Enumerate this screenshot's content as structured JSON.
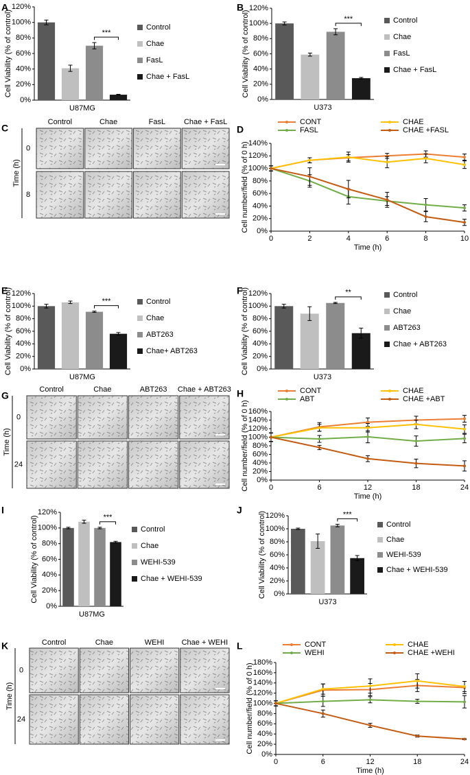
{
  "chart_data": [
    {
      "letter": "A",
      "type": "bar",
      "xlabel": "U87MG",
      "ylabel": "Cell Viability (% of control)",
      "annotation": "***",
      "ylim": [
        0,
        120
      ],
      "yticks": [
        {
          "value": 0,
          "label": "0%"
        },
        {
          "value": 20,
          "label": "20%"
        },
        {
          "value": 40,
          "label": "40%"
        },
        {
          "value": 60,
          "label": "60%"
        },
        {
          "value": 80,
          "label": "80%"
        },
        {
          "value": 100,
          "label": "100%"
        },
        {
          "value": 120,
          "label": "120%"
        }
      ],
      "series": [
        {
          "name": "Control",
          "color": "#595959",
          "values": [
            100
          ],
          "errors": [
            3
          ]
        },
        {
          "name": "Chae",
          "color": "#bfbfbf",
          "values": [
            41
          ],
          "errors": [
            4
          ]
        },
        {
          "name": "FasL",
          "color": "#8c8c8c",
          "values": [
            70
          ],
          "errors": [
            4
          ]
        },
        {
          "name": "Chae + FasL",
          "color": "#1a1a1a",
          "values": [
            7
          ],
          "errors": [
            0.5
          ]
        }
      ]
    },
    {
      "letter": "B",
      "type": "bar",
      "xlabel": "U373",
      "ylabel": "Cell Viability (% of control)",
      "annotation": "***",
      "ylim": [
        0,
        120
      ],
      "yticks": [
        {
          "value": 0,
          "label": "0%"
        },
        {
          "value": 20,
          "label": "20%"
        },
        {
          "value": 40,
          "label": "40%"
        },
        {
          "value": 60,
          "label": "60%"
        },
        {
          "value": 80,
          "label": "80%"
        },
        {
          "value": 100,
          "label": "100%"
        },
        {
          "value": 120,
          "label": "120%"
        }
      ],
      "series": [
        {
          "name": "Control",
          "color": "#595959",
          "values": [
            100
          ],
          "errors": [
            2
          ]
        },
        {
          "name": "Chae",
          "color": "#bfbfbf",
          "values": [
            59
          ],
          "errors": [
            2
          ]
        },
        {
          "name": "FasL",
          "color": "#8c8c8c",
          "values": [
            89
          ],
          "errors": [
            4
          ]
        },
        {
          "name": "Chae + FasL",
          "color": "#1a1a1a",
          "values": [
            28
          ],
          "errors": [
            1
          ]
        }
      ]
    },
    {
      "letter": "D",
      "type": "line",
      "xlabel": "Time (h)",
      "ylabel": "Cell number/field (% of 0 h)",
      "x": [
        0,
        2,
        4,
        6,
        8,
        10
      ],
      "xlim": [
        0,
        10
      ],
      "xticks": [
        0,
        2,
        4,
        6,
        8,
        10
      ],
      "ylim": [
        0,
        140
      ],
      "yticks": [
        {
          "value": 0,
          "label": "0%"
        },
        {
          "value": 20,
          "label": "20%"
        },
        {
          "value": 40,
          "label": "40%"
        },
        {
          "value": 60,
          "label": "60%"
        },
        {
          "value": 80,
          "label": "80%"
        },
        {
          "value": 100,
          "label": "100%"
        },
        {
          "value": 120,
          "label": "120%"
        },
        {
          "value": 140,
          "label": "140%"
        }
      ],
      "series": [
        {
          "name": "CONT",
          "color": "#ed7d31",
          "values": [
            100,
            113,
            117,
            120,
            123,
            118
          ],
          "errors": [
            4,
            4,
            5,
            4,
            5,
            5
          ]
        },
        {
          "name": "CHAE",
          "color": "#ffc000",
          "values": [
            100,
            113,
            118,
            110,
            116,
            106
          ],
          "errors": [
            4,
            4,
            8,
            9,
            7,
            6
          ]
        },
        {
          "name": "FASL",
          "color": "#70ad47",
          "values": [
            100,
            80,
            55,
            48,
            42,
            37
          ],
          "errors": [
            4,
            10,
            12,
            7,
            10,
            5
          ]
        },
        {
          "name": "CHAE +FASL",
          "color": "#c55a11",
          "values": [
            100,
            87,
            67,
            50,
            23,
            14
          ],
          "errors": [
            4,
            14,
            14,
            12,
            8,
            5
          ]
        }
      ]
    },
    {
      "letter": "E",
      "type": "bar",
      "xlabel": "U87MG",
      "ylabel": "Cell Viability (% of control)",
      "annotation": "***",
      "ylim": [
        0,
        120
      ],
      "yticks": [
        {
          "value": 0,
          "label": "0%"
        },
        {
          "value": 20,
          "label": "20%"
        },
        {
          "value": 40,
          "label": "40%"
        },
        {
          "value": 60,
          "label": "60%"
        },
        {
          "value": 80,
          "label": "80%"
        },
        {
          "value": 100,
          "label": "100%"
        },
        {
          "value": 120,
          "label": "120%"
        }
      ],
      "series": [
        {
          "name": "Control",
          "color": "#595959",
          "values": [
            100
          ],
          "errors": [
            3
          ]
        },
        {
          "name": "Chae",
          "color": "#bfbfbf",
          "values": [
            106
          ],
          "errors": [
            2
          ]
        },
        {
          "name": "ABT263",
          "color": "#8c8c8c",
          "values": [
            91
          ],
          "errors": [
            1
          ]
        },
        {
          "name": "Chae+ ABT263",
          "color": "#1a1a1a",
          "values": [
            56
          ],
          "errors": [
            2
          ]
        }
      ]
    },
    {
      "letter": "F",
      "type": "bar",
      "xlabel": "U373",
      "ylabel": "Cell Viability (% of control)",
      "annotation": "**",
      "ylim": [
        0,
        120
      ],
      "yticks": [
        {
          "value": 0,
          "label": "0%"
        },
        {
          "value": 20,
          "label": "20%"
        },
        {
          "value": 40,
          "label": "40%"
        },
        {
          "value": 60,
          "label": "60%"
        },
        {
          "value": 80,
          "label": "80%"
        },
        {
          "value": 100,
          "label": "100%"
        },
        {
          "value": 120,
          "label": "120%"
        }
      ],
      "series": [
        {
          "name": "Control",
          "color": "#595959",
          "values": [
            100
          ],
          "errors": [
            3
          ]
        },
        {
          "name": "Chae",
          "color": "#bfbfbf",
          "values": [
            88
          ],
          "errors": [
            11
          ]
        },
        {
          "name": "ABT263",
          "color": "#8c8c8c",
          "values": [
            105
          ],
          "errors": [
            1
          ]
        },
        {
          "name": "Chae + ABT263",
          "color": "#1a1a1a",
          "values": [
            57
          ],
          "errors": [
            8
          ]
        }
      ]
    },
    {
      "letter": "H",
      "type": "line",
      "xlabel": "Time (h)",
      "ylabel": "Cell number/field (% of 0 h)",
      "x": [
        0,
        6,
        12,
        18,
        24
      ],
      "xlim": [
        0,
        24
      ],
      "xticks": [
        0,
        6,
        12,
        18,
        24
      ],
      "ylim": [
        0,
        160
      ],
      "yticks": [
        {
          "value": 0,
          "label": "0%"
        },
        {
          "value": 20,
          "label": "20%"
        },
        {
          "value": 40,
          "label": "40%"
        },
        {
          "value": 60,
          "label": "60%"
        },
        {
          "value": 80,
          "label": "80%"
        },
        {
          "value": 100,
          "label": "100%"
        },
        {
          "value": 120,
          "label": "120%"
        },
        {
          "value": 140,
          "label": "140%"
        },
        {
          "value": 160,
          "label": "160%"
        }
      ],
      "series": [
        {
          "name": "CONT",
          "color": "#ed7d31",
          "values": [
            100,
            124,
            135,
            140,
            143
          ],
          "errors": [
            10,
            10,
            10,
            9,
            8
          ]
        },
        {
          "name": "CHAE",
          "color": "#ffc000",
          "values": [
            100,
            122,
            122,
            130,
            119
          ],
          "errors": [
            10,
            8,
            10,
            10,
            10
          ]
        },
        {
          "name": "ABT",
          "color": "#70ad47",
          "values": [
            100,
            96,
            101,
            91,
            97
          ],
          "errors": [
            10,
            8,
            14,
            12,
            10
          ]
        },
        {
          "name": "CHAE +ABT",
          "color": "#c55a11",
          "values": [
            100,
            76,
            50,
            39,
            33
          ],
          "errors": [
            10,
            5,
            7,
            10,
            12
          ]
        }
      ]
    },
    {
      "letter": "I",
      "type": "bar",
      "xlabel": "U87MG",
      "ylabel": "Cell Viability (% of control)",
      "annotation": "***",
      "ylim": [
        0,
        120
      ],
      "yticks": [
        {
          "value": 0,
          "label": "0%"
        },
        {
          "value": 20,
          "label": "20%"
        },
        {
          "value": 40,
          "label": "40%"
        },
        {
          "value": 60,
          "label": "60%"
        },
        {
          "value": 80,
          "label": "80%"
        },
        {
          "value": 100,
          "label": "100%"
        },
        {
          "value": 120,
          "label": "120%"
        }
      ],
      "series": [
        {
          "name": "Control",
          "color": "#595959",
          "values": [
            100
          ],
          "errors": [
            1
          ]
        },
        {
          "name": "Chae",
          "color": "#bfbfbf",
          "values": [
            108
          ],
          "errors": [
            2
          ]
        },
        {
          "name": "WEHI-539",
          "color": "#8c8c8c",
          "values": [
            100
          ],
          "errors": [
            1
          ]
        },
        {
          "name": "Chae + WEHI-539",
          "color": "#1a1a1a",
          "values": [
            82
          ],
          "errors": [
            1
          ]
        }
      ]
    },
    {
      "letter": "J",
      "type": "bar",
      "xlabel": "U373",
      "ylabel": "Cell Viability (% of control)",
      "annotation": "***",
      "ylim": [
        0,
        120
      ],
      "yticks": [
        {
          "value": 0,
          "label": "0%"
        },
        {
          "value": 20,
          "label": "20%"
        },
        {
          "value": 40,
          "label": "40%"
        },
        {
          "value": 60,
          "label": "60%"
        },
        {
          "value": 80,
          "label": "80%"
        },
        {
          "value": 100,
          "label": "100%"
        },
        {
          "value": 120,
          "label": "120%"
        }
      ],
      "series": [
        {
          "name": "Control",
          "color": "#595959",
          "values": [
            100
          ],
          "errors": [
            1
          ]
        },
        {
          "name": "Chae",
          "color": "#bfbfbf",
          "values": [
            81
          ],
          "errors": [
            11
          ]
        },
        {
          "name": "WEHI-539",
          "color": "#8c8c8c",
          "values": [
            105
          ],
          "errors": [
            2
          ]
        },
        {
          "name": "Chae + WEHI-539",
          "color": "#1a1a1a",
          "values": [
            55
          ],
          "errors": [
            4
          ]
        }
      ]
    },
    {
      "letter": "L",
      "type": "line",
      "xlabel": "Time (h)",
      "ylabel": "Cell number/field (% of 0 h)",
      "x": [
        0,
        6,
        12,
        18,
        24
      ],
      "xlim": [
        0,
        24
      ],
      "xticks": [
        0,
        6,
        12,
        18,
        24
      ],
      "ylim": [
        0,
        180
      ],
      "yticks": [
        {
          "value": 0,
          "label": "0%"
        },
        {
          "value": 20,
          "label": "20%"
        },
        {
          "value": 40,
          "label": "40%"
        },
        {
          "value": 60,
          "label": "60%"
        },
        {
          "value": 80,
          "label": "80%"
        },
        {
          "value": 100,
          "label": "100%"
        },
        {
          "value": 120,
          "label": "120%"
        },
        {
          "value": 140,
          "label": "140%"
        },
        {
          "value": 160,
          "label": "160%"
        },
        {
          "value": 180,
          "label": "180%"
        }
      ],
      "series": [
        {
          "name": "CONT",
          "color": "#ed7d31",
          "values": [
            100,
            126,
            127,
            135,
            131
          ],
          "errors": [
            5,
            12,
            12,
            12,
            12
          ]
        },
        {
          "name": "CHAE",
          "color": "#ffc000",
          "values": [
            100,
            128,
            134,
            144,
            133
          ],
          "errors": [
            5,
            10,
            14,
            14,
            10
          ]
        },
        {
          "name": "WEHI",
          "color": "#70ad47",
          "values": [
            100,
            104,
            107,
            104,
            103
          ],
          "errors": [
            5,
            10,
            6,
            4,
            12
          ]
        },
        {
          "name": "CHAE +WEHI",
          "color": "#c55a11",
          "values": [
            100,
            80,
            57,
            36,
            30
          ],
          "errors": [
            5,
            7,
            4,
            2,
            1
          ]
        }
      ]
    }
  ],
  "image_panels": [
    {
      "letter": "C",
      "row_axis": "Time (h)",
      "columns": [
        "Control",
        "Chae",
        "FasL",
        "Chae + FasL"
      ],
      "rows": [
        "0",
        "8"
      ]
    },
    {
      "letter": "G",
      "row_axis": "Time (h)",
      "columns": [
        "Control",
        "Chae",
        "ABT263",
        "Chae + ABT263"
      ],
      "rows": [
        "0",
        "24"
      ]
    },
    {
      "letter": "K",
      "row_axis": "Time (h)",
      "columns": [
        "Control",
        "Chae",
        "WEHI",
        "Chae + WEHI"
      ],
      "rows": [
        "0",
        "24"
      ]
    }
  ]
}
